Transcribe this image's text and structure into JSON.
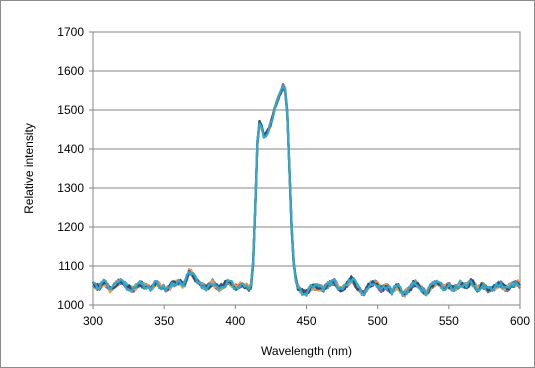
{
  "chart_data": {
    "type": "line",
    "title": "",
    "xlabel": "Wavelength (nm)",
    "ylabel": "Relative intensity",
    "xlim": [
      300,
      600
    ],
    "ylim": [
      1000,
      1700
    ],
    "xticks": [
      300,
      350,
      400,
      450,
      500,
      550,
      600
    ],
    "yticks": [
      1000,
      1100,
      1200,
      1300,
      1400,
      1500,
      1600,
      1700
    ],
    "grid": "horizontal",
    "legend": "none",
    "series_colors": [
      "#7f3f98",
      "#c0504d",
      "#9bbb59",
      "#8064a2",
      "#4bacc6",
      "#f79646",
      "#2c4d75",
      "#31a8c9"
    ],
    "base_profile": {
      "x": [
        300,
        304,
        308,
        312,
        316,
        320,
        324,
        328,
        332,
        336,
        340,
        344,
        348,
        352,
        356,
        360,
        364,
        368,
        372,
        376,
        380,
        384,
        388,
        392,
        396,
        400,
        404,
        408,
        410,
        412,
        414,
        416,
        418,
        420,
        422,
        424,
        426,
        428,
        430,
        432,
        434,
        436,
        438,
        440,
        442,
        444,
        446,
        450,
        454,
        458,
        462,
        466,
        470,
        474,
        478,
        482,
        486,
        490,
        494,
        498,
        502,
        506,
        510,
        514,
        518,
        522,
        526,
        530,
        534,
        538,
        542,
        546,
        550,
        554,
        558,
        562,
        566,
        570,
        574,
        578,
        582,
        586,
        590,
        594,
        598,
        600
      ],
      "y": [
        1052,
        1045,
        1060,
        1040,
        1055,
        1062,
        1047,
        1038,
        1055,
        1050,
        1042,
        1058,
        1046,
        1040,
        1054,
        1060,
        1050,
        1090,
        1066,
        1050,
        1044,
        1058,
        1042,
        1052,
        1060,
        1045,
        1052,
        1048,
        1040,
        1055,
        1250,
        1470,
        1460,
        1435,
        1440,
        1455,
        1480,
        1510,
        1530,
        1545,
        1565,
        1540,
        1350,
        1150,
        1070,
        1045,
        1035,
        1030,
        1048,
        1045,
        1042,
        1055,
        1060,
        1038,
        1050,
        1068,
        1045,
        1030,
        1052,
        1060,
        1040,
        1048,
        1035,
        1050,
        1025,
        1040,
        1058,
        1045,
        1030,
        1050,
        1060,
        1045,
        1050,
        1040,
        1055,
        1048,
        1060,
        1042,
        1050,
        1038,
        1044,
        1055,
        1040,
        1050,
        1058,
        1048
      ]
    }
  }
}
